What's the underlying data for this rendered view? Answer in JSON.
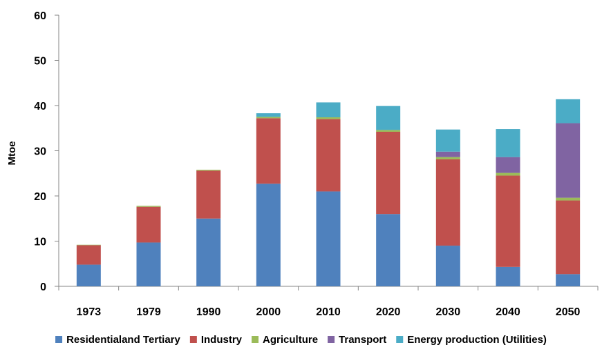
{
  "chart_data": {
    "type": "bar",
    "stacked": true,
    "title": "",
    "xlabel": "",
    "ylabel": "Mtoe",
    "ylim": [
      0,
      60
    ],
    "yticks": [
      0,
      10,
      20,
      30,
      40,
      50,
      60
    ],
    "grid": false,
    "legend_position": "bottom",
    "categories": [
      "1973",
      "1979",
      "1990",
      "2000",
      "2010",
      "2020",
      "2030",
      "2040",
      "2050"
    ],
    "series": [
      {
        "name": "Residentialand Tertiary",
        "color": "#4f81bd",
        "values": [
          4.8,
          9.7,
          15.0,
          22.7,
          21.0,
          16.0,
          9.0,
          4.3,
          2.7
        ]
      },
      {
        "name": "Industry",
        "color": "#c0504d",
        "values": [
          4.3,
          7.9,
          10.6,
          14.5,
          16.0,
          18.2,
          19.1,
          20.2,
          16.3
        ]
      },
      {
        "name": "Agriculture",
        "color": "#9bbb59",
        "values": [
          0.1,
          0.2,
          0.2,
          0.3,
          0.4,
          0.4,
          0.5,
          0.6,
          0.6
        ]
      },
      {
        "name": "Transport",
        "color": "#8064a2",
        "values": [
          0,
          0,
          0,
          0,
          0,
          0,
          1.2,
          3.5,
          16.5
        ]
      },
      {
        "name": "Energy production (Utilities)",
        "color": "#4bacc6",
        "values": [
          0,
          0,
          0,
          0.8,
          3.3,
          5.3,
          4.9,
          6.2,
          5.3
        ]
      }
    ]
  }
}
